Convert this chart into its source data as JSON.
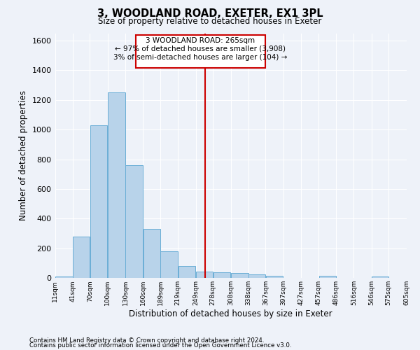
{
  "title": "3, WOODLAND ROAD, EXETER, EX1 3PL",
  "subtitle": "Size of property relative to detached houses in Exeter",
  "xlabel": "Distribution of detached houses by size in Exeter",
  "ylabel": "Number of detached properties",
  "bar_color": "#b8d3ea",
  "bar_edge_color": "#6aaed6",
  "background_color": "#eef2f9",
  "grid_color": "#ffffff",
  "annotation_line1": "3 WOODLAND ROAD: 265sqm",
  "annotation_line2": "← 97% of detached houses are smaller (3,908)",
  "annotation_line3": "3% of semi-detached houses are larger (104) →",
  "vline_x": 265,
  "vline_color": "#cc0000",
  "bin_edges": [
    11,
    41,
    70,
    100,
    130,
    160,
    189,
    219,
    249,
    278,
    308,
    338,
    367,
    397,
    427,
    457,
    486,
    516,
    546,
    575,
    605
  ],
  "bar_heights": [
    10,
    280,
    1030,
    1250,
    760,
    330,
    180,
    80,
    45,
    40,
    35,
    25,
    15,
    0,
    0,
    15,
    0,
    0,
    10,
    0
  ],
  "ylim": [
    0,
    1650
  ],
  "yticks": [
    0,
    200,
    400,
    600,
    800,
    1000,
    1200,
    1400,
    1600
  ],
  "footnote1": "Contains HM Land Registry data © Crown copyright and database right 2024.",
  "footnote2": "Contains public sector information licensed under the Open Government Licence v3.0."
}
